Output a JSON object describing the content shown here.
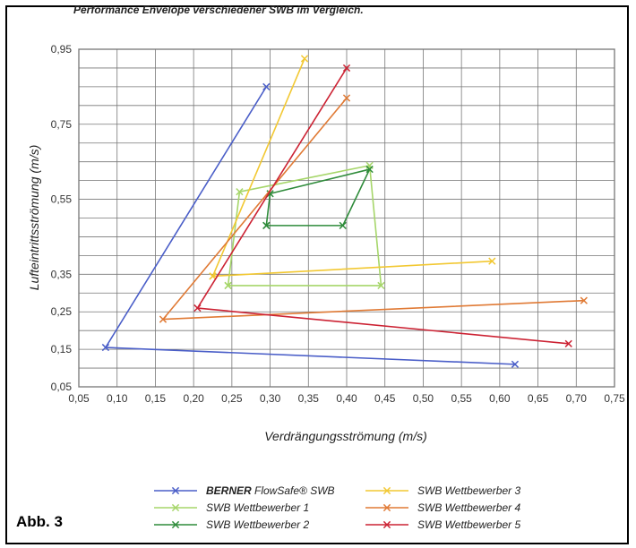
{
  "chart_data": {
    "type": "line",
    "title": "Performance Envelope verschiedener SWB im Vergleich.",
    "xlabel": "Verdrängungsströmung (m/s)",
    "ylabel": "Lufteintrittsströmung (m/s)",
    "xlim": [
      0.05,
      0.75
    ],
    "ylim": [
      0.05,
      0.95
    ],
    "xticks": [
      0.05,
      0.1,
      0.15,
      0.2,
      0.25,
      0.3,
      0.35,
      0.4,
      0.45,
      0.5,
      0.55,
      0.6,
      0.65,
      0.7,
      0.75
    ],
    "xtick_labels": [
      "0,05",
      "0,10",
      "0,15",
      "0,20",
      "0,25",
      "0,30",
      "0,35",
      "0,40",
      "0,45",
      "0,50",
      "0,55",
      "0,60",
      "0,65",
      "0,70",
      "0,75"
    ],
    "yticks": [
      0.05,
      0.15,
      0.25,
      0.35,
      0.55,
      0.75,
      0.95
    ],
    "ytick_labels": [
      "0,05",
      "0,15",
      "0,25",
      "0,35",
      "0,55",
      "0,75",
      "0,95"
    ],
    "grid": true,
    "series": [
      {
        "name": "FlowSafe® SWB",
        "brand": "BERNER",
        "color": "#4a5ec8",
        "points": [
          [
            0.62,
            0.11
          ],
          [
            0.085,
            0.155
          ],
          [
            0.295,
            0.85
          ]
        ]
      },
      {
        "name": "SWB Wettbewerber 1",
        "color": "#a6d66a",
        "points": [
          [
            0.245,
            0.32
          ],
          [
            0.26,
            0.57
          ],
          [
            0.43,
            0.64
          ],
          [
            0.445,
            0.32
          ],
          [
            0.245,
            0.32
          ]
        ]
      },
      {
        "name": "SWB Wettbewerber 2",
        "color": "#2e8b3a",
        "points": [
          [
            0.295,
            0.48
          ],
          [
            0.395,
            0.48
          ],
          [
            0.43,
            0.63
          ],
          [
            0.3,
            0.565
          ],
          [
            0.295,
            0.48
          ]
        ]
      },
      {
        "name": "SWB Wettbewerber 3",
        "color": "#f2c832",
        "points": [
          [
            0.59,
            0.385
          ],
          [
            0.225,
            0.345
          ],
          [
            0.345,
            0.925
          ],
          [
            0.225,
            0.345
          ]
        ]
      },
      {
        "name": "SWB Wettbewerber 4",
        "color": "#e07a35",
        "points": [
          [
            0.71,
            0.28
          ],
          [
            0.16,
            0.23
          ],
          [
            0.4,
            0.82
          ]
        ]
      },
      {
        "name": "SWB Wettbewerber 5",
        "color": "#cc2233",
        "points": [
          [
            0.69,
            0.165
          ],
          [
            0.205,
            0.26
          ],
          [
            0.4,
            0.9
          ]
        ]
      }
    ]
  },
  "figure": {
    "caption": "Abb. 3"
  }
}
